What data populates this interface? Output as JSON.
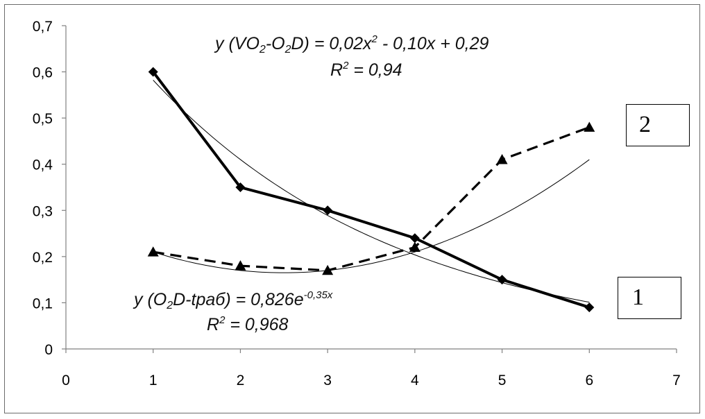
{
  "chart_data": {
    "type": "line",
    "xlim": [
      0,
      7
    ],
    "ylim": [
      0,
      0.7
    ],
    "x_ticks": [
      "0",
      "1",
      "2",
      "3",
      "4",
      "5",
      "6",
      "7"
    ],
    "y_ticks": [
      "0",
      "0,1",
      "0,2",
      "0,3",
      "0,4",
      "0,5",
      "0,6",
      "0,7"
    ],
    "grid": false,
    "series": [
      {
        "label": "1",
        "marker": "diamond",
        "line": "solid",
        "x": [
          1,
          2,
          3,
          4,
          5,
          6
        ],
        "y": [
          0.6,
          0.35,
          0.3,
          0.24,
          0.15,
          0.09
        ]
      },
      {
        "label": "2",
        "marker": "triangle",
        "line": "dashed",
        "x": [
          1,
          2,
          3,
          4,
          5,
          6
        ],
        "y": [
          0.21,
          0.18,
          0.17,
          0.22,
          0.41,
          0.48
        ]
      }
    ],
    "trendlines": [
      {
        "type": "polynomial",
        "coefficients": [
          0.02,
          -0.1,
          0.29
        ]
      },
      {
        "type": "exponential",
        "a": 0.826,
        "b": -0.35
      }
    ],
    "annotations": {
      "eq_top": {
        "prefix": "y (VO",
        "sub1": "2",
        "mid1": "-O",
        "sub2": "2",
        "mid2": "D) = 0,02x",
        "sup": "2",
        "suffix": " - 0,10x + 0,29"
      },
      "r2_top": {
        "prefix": "R",
        "sup": "2",
        "suffix": " = 0,94"
      },
      "eq_bottom": {
        "prefix": "y (O",
        "sub": "2",
        "mid": "D-tраб) = 0,826e",
        "sup": "-0,35x"
      },
      "r2_bottom": {
        "prefix": "R",
        "sup": "2",
        "suffix": " = 0,968"
      }
    },
    "box_labels": {
      "series1": "1",
      "series2": "2"
    }
  }
}
